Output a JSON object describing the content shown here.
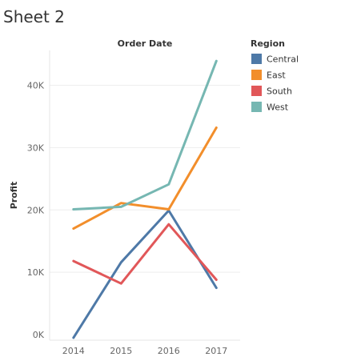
{
  "sheet": {
    "title": "Sheet 2"
  },
  "chart_data": {
    "type": "line",
    "title": "",
    "column_header": "Order Date",
    "xlabel": "",
    "ylabel": "Profit",
    "categories": [
      "2014",
      "2015",
      "2016",
      "2017"
    ],
    "ylim": [
      0,
      45000
    ],
    "yticks": [
      {
        "value": 0,
        "label": "0K"
      },
      {
        "value": 10000,
        "label": "10K"
      },
      {
        "value": 20000,
        "label": "20K"
      },
      {
        "value": 30000,
        "label": "30K"
      },
      {
        "value": 40000,
        "label": "40K"
      }
    ],
    "grid": true,
    "legend": {
      "title": "Region",
      "position": "right"
    },
    "series": [
      {
        "name": "Central",
        "color": "#4e79a7",
        "values": [
          -500,
          11600,
          19900,
          7500
        ]
      },
      {
        "name": "East",
        "color": "#f28e2b",
        "values": [
          17000,
          21100,
          20100,
          33200
        ]
      },
      {
        "name": "South",
        "color": "#e15759",
        "values": [
          11800,
          8200,
          17700,
          8800
        ]
      },
      {
        "name": "West",
        "color": "#76b7b2",
        "values": [
          20100,
          20500,
          24100,
          43900
        ]
      }
    ]
  }
}
